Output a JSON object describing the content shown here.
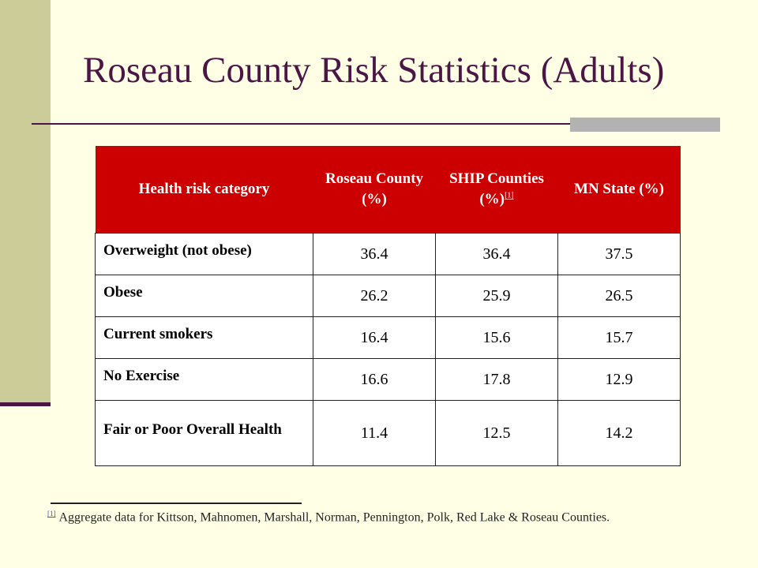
{
  "slide": {
    "title": "Roseau County Risk Statistics (Adults)"
  },
  "table": {
    "headers": {
      "category": "Health risk category",
      "roseau": "Roseau County (%)",
      "ship": "SHIP Counties (%)",
      "ship_ref": "[1]",
      "mn": "MN State (%)"
    },
    "rows": [
      {
        "category": "Overweight (not obese)",
        "roseau": "36.4",
        "ship": "36.4",
        "mn": "37.5"
      },
      {
        "category": "Obese",
        "roseau": "26.2",
        "ship": "25.9",
        "mn": "26.5"
      },
      {
        "category": "Current smokers",
        "roseau": "16.4",
        "ship": "15.6",
        "mn": "15.7"
      },
      {
        "category": "No Exercise",
        "roseau": "16.6",
        "ship": "17.8",
        "mn": "12.9"
      },
      {
        "category": "Fair or Poor Overall Health",
        "roseau": "11.4",
        "ship": "12.5",
        "mn": "14.2"
      }
    ]
  },
  "footnote": {
    "ref": "[1]",
    "text": "Aggregate data for Kittson, Mahnomen, Marshall, Norman, Pennington, Polk, Red Lake & Roseau Counties."
  },
  "colors": {
    "background": "#FFFFE5",
    "sidebar": "#CCCC99",
    "title": "#4B1545",
    "header": "#CC0000"
  }
}
